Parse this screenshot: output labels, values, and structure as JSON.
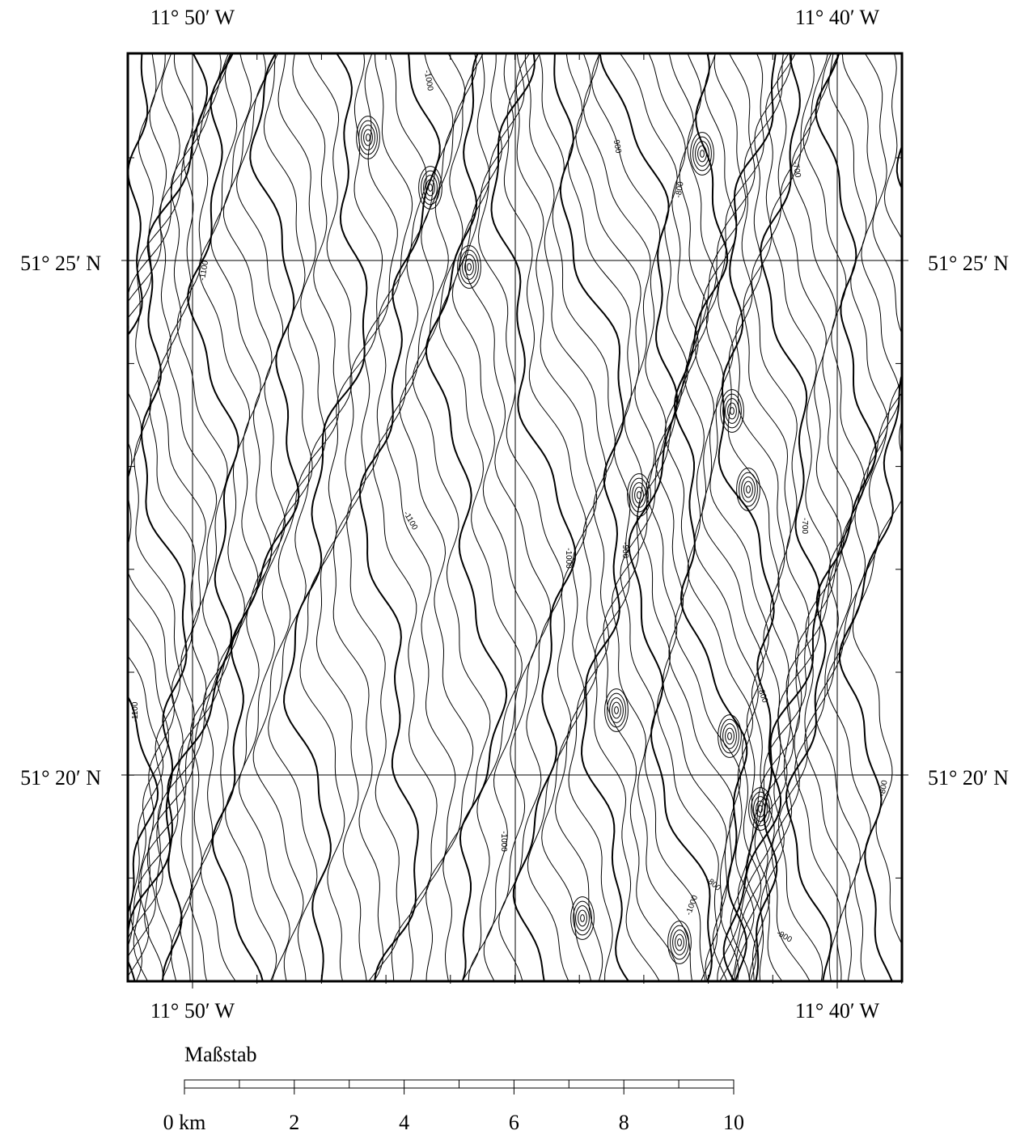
{
  "map": {
    "top_labels": [
      "11° 50′ W",
      "11° 40′ W"
    ],
    "bottom_labels": [
      "11° 50′ W",
      "11° 40′ W"
    ],
    "left_labels": [
      "51° 25′ N",
      "51° 20′ N"
    ],
    "right_labels": [
      "51° 25′ N",
      "51° 20′ N"
    ],
    "contour_labels": [
      "-1000",
      "-900",
      "-800",
      "-700",
      "-1100",
      "-1100",
      "-1000",
      "-900",
      "-700",
      "-800",
      "-1100",
      "-1000",
      "-800",
      "-1000",
      "-800",
      "-900"
    ]
  },
  "scale": {
    "title": "Maßstab",
    "labels": [
      "0 km",
      "2",
      "4",
      "6",
      "8",
      "10"
    ]
  }
}
